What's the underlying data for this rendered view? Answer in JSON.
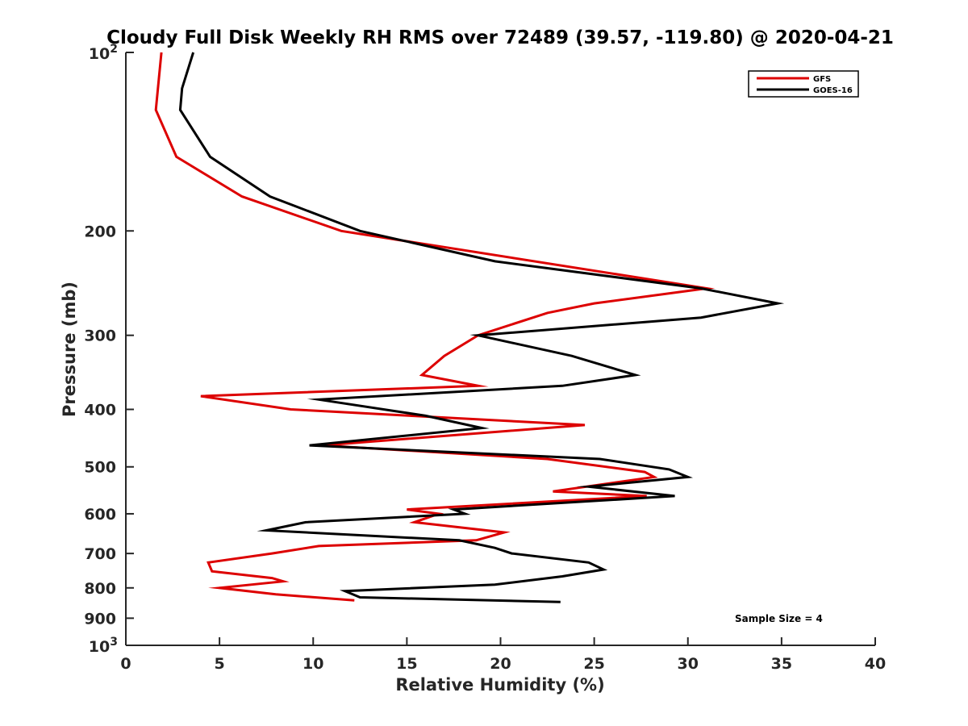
{
  "chart_data": {
    "type": "line",
    "title": "Cloudy Full Disk Weekly RH RMS over 72489 (39.57, -119.80) @ 2020-04-21",
    "xlabel": "Relative Humidity (%)",
    "ylabel": "Pressure (mb)",
    "xlim": [
      0,
      40
    ],
    "ylim": [
      100,
      1000
    ],
    "yscale": "log",
    "y_reversed": true,
    "x_ticks": [
      "0",
      "5",
      "10",
      "15",
      "20",
      "25",
      "30",
      "35",
      "40"
    ],
    "y_ticks": [
      {
        "value": 100,
        "label": "10",
        "sup": "2"
      },
      {
        "value": 200,
        "label": "200"
      },
      {
        "value": 300,
        "label": "300"
      },
      {
        "value": 400,
        "label": "400"
      },
      {
        "value": 500,
        "label": "500"
      },
      {
        "value": 600,
        "label": "600"
      },
      {
        "value": 700,
        "label": "700"
      },
      {
        "value": 800,
        "label": "800"
      },
      {
        "value": 900,
        "label": "900"
      },
      {
        "value": 1000,
        "label": "10",
        "sup": "3"
      }
    ],
    "legend_position": "top-right",
    "grid": false,
    "annotation": "Sample Size = 4",
    "series": [
      {
        "name": "GFS",
        "color": "#dd0000",
        "points": [
          [
            1.9,
            100
          ],
          [
            1.6,
            125
          ],
          [
            2.7,
            150
          ],
          [
            6.2,
            175
          ],
          [
            11.5,
            200
          ],
          [
            31.0,
            250
          ],
          [
            25.0,
            265
          ],
          [
            22.5,
            275
          ],
          [
            18.8,
            300
          ],
          [
            17.0,
            325
          ],
          [
            15.8,
            350
          ],
          [
            18.8,
            365
          ],
          [
            4.0,
            380
          ],
          [
            8.8,
            400
          ],
          [
            24.5,
            425
          ],
          [
            10.5,
            460
          ],
          [
            22.5,
            485
          ],
          [
            27.7,
            510
          ],
          [
            28.2,
            520
          ],
          [
            22.8,
            550
          ],
          [
            27.8,
            560
          ],
          [
            15.0,
            590
          ],
          [
            16.7,
            600
          ],
          [
            15.4,
            620
          ],
          [
            20.2,
            645
          ],
          [
            18.7,
            665
          ],
          [
            10.3,
            680
          ],
          [
            7.8,
            700
          ],
          [
            4.4,
            725
          ],
          [
            4.6,
            750
          ],
          [
            7.8,
            770
          ],
          [
            8.4,
            780
          ],
          [
            5.0,
            800
          ],
          [
            8.0,
            820
          ],
          [
            12.2,
            840
          ]
        ]
      },
      {
        "name": "GOES-16",
        "color": "#000000",
        "points": [
          [
            3.6,
            100
          ],
          [
            3.0,
            115
          ],
          [
            2.9,
            125
          ],
          [
            4.5,
            150
          ],
          [
            7.7,
            175
          ],
          [
            12.5,
            200
          ],
          [
            19.7,
            225
          ],
          [
            30.7,
            250
          ],
          [
            34.8,
            265
          ],
          [
            30.7,
            280
          ],
          [
            18.8,
            300
          ],
          [
            23.8,
            325
          ],
          [
            27.2,
            350
          ],
          [
            23.3,
            365
          ],
          [
            10.3,
            385
          ],
          [
            16.0,
            410
          ],
          [
            19.0,
            430
          ],
          [
            9.8,
            460
          ],
          [
            25.3,
            485
          ],
          [
            29.0,
            505
          ],
          [
            30.0,
            520
          ],
          [
            24.7,
            540
          ],
          [
            29.3,
            560
          ],
          [
            17.5,
            590
          ],
          [
            18.1,
            600
          ],
          [
            9.6,
            620
          ],
          [
            7.5,
            640
          ],
          [
            17.8,
            665
          ],
          [
            19.7,
            685
          ],
          [
            20.6,
            700
          ],
          [
            24.7,
            725
          ],
          [
            25.5,
            745
          ],
          [
            23.3,
            765
          ],
          [
            19.7,
            790
          ],
          [
            11.7,
            810
          ],
          [
            12.5,
            830
          ],
          [
            23.2,
            845
          ]
        ]
      }
    ]
  }
}
